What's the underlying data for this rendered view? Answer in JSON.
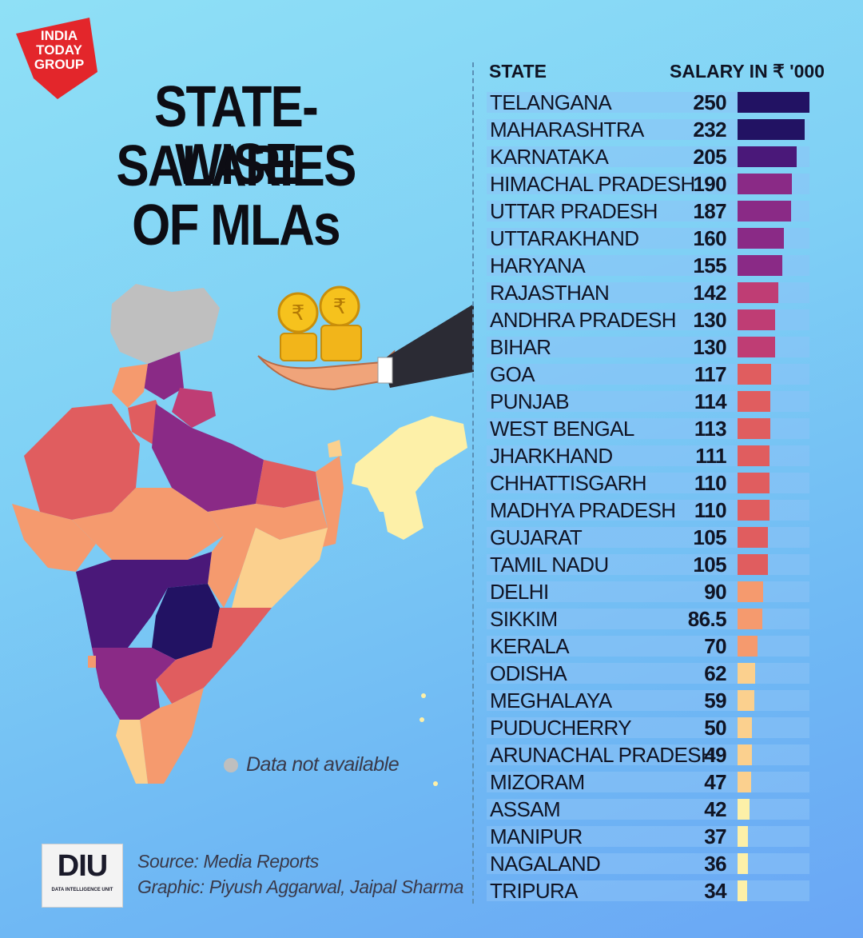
{
  "brand": {
    "line1": "INDIA",
    "line2": "TODAY",
    "line3": "GROUP"
  },
  "title": {
    "line1": "STATE-WISE",
    "line2": "SALARIES",
    "line3": "OF MLAs"
  },
  "legend": {
    "no_data": "Data not available"
  },
  "source": {
    "source_line": "Source: Media Reports",
    "graphic_line": "Graphic: Piyush Aggarwal, Jaipal Sharma",
    "unit_logo": "DIU",
    "unit_name": "DATA INTELLIGENCE UNIT"
  },
  "colors": {
    "no_data": "#bfbfbf",
    "scale": [
      "#fdf0a8",
      "#fbd08e",
      "#f59a6e",
      "#e05d5f",
      "#bf3d74",
      "#8a2a86",
      "#4a1879",
      "#221263"
    ]
  },
  "icons": [
    "rupee-coin-icon",
    "hand-icon",
    "india-map"
  ],
  "chart_data": {
    "type": "bar",
    "orientation": "horizontal",
    "header_state": "STATE",
    "header_salary": "SALARY IN ₹ '000",
    "ylim": [
      0,
      250
    ],
    "categories": [
      "TELANGANA",
      "MAHARASHTRA",
      "KARNATAKA",
      "HIMACHAL PRADESH",
      "UTTAR PRADESH",
      "UTTARAKHAND",
      "HARYANA",
      "RAJASTHAN",
      "ANDHRA PRADESH",
      "BIHAR",
      "GOA",
      "PUNJAB",
      "WEST BENGAL",
      "JHARKHAND",
      "CHHATTISGARH",
      "MADHYA PRADESH",
      "GUJARAT",
      "TAMIL NADU",
      "DELHI",
      "SIKKIM",
      "KERALA",
      "ODISHA",
      "MEGHALAYA",
      "PUDUCHERRY",
      "ARUNACHAL PRADESH",
      "MIZORAM",
      "ASSAM",
      "MANIPUR",
      "NAGALAND",
      "TRIPURA"
    ],
    "values": [
      250,
      232,
      205,
      190,
      187,
      160,
      155,
      142,
      130,
      130,
      117,
      114,
      113,
      111,
      110,
      110,
      105,
      105,
      90,
      86.5,
      70,
      62,
      59,
      50,
      49,
      47,
      42,
      37,
      36,
      34
    ],
    "value_labels": [
      "250",
      "232",
      "205",
      "190",
      "187",
      "160",
      "155",
      "142",
      "130",
      "130",
      "117",
      "114",
      "113",
      "111",
      "110",
      "110",
      "105",
      "105",
      "90",
      "86.5",
      "70",
      "62",
      "59",
      "50",
      "49",
      "47",
      "42",
      "37",
      "36",
      "34"
    ]
  }
}
